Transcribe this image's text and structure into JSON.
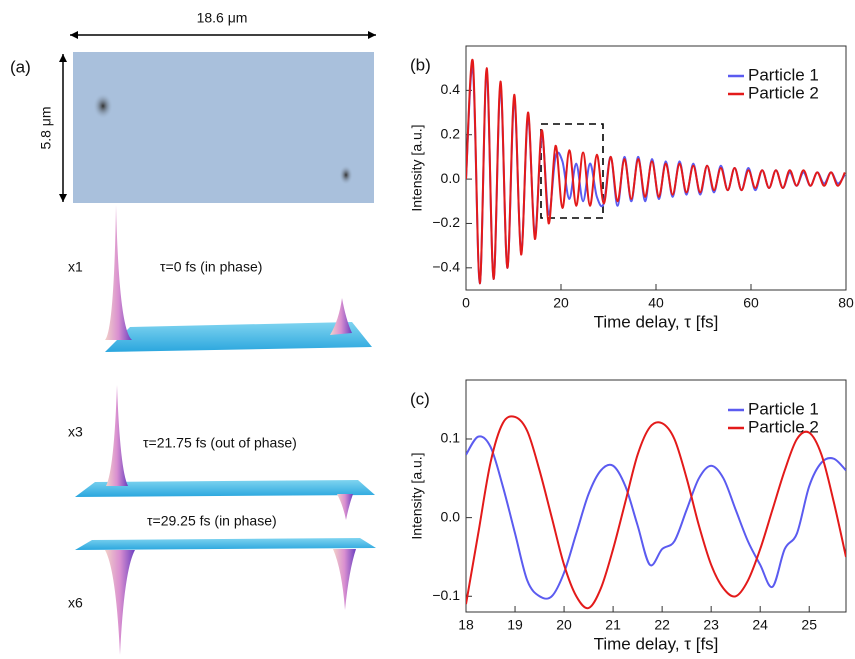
{
  "panel_a": {
    "label": "(a)",
    "width_label": "18.6 μm",
    "height_label": "5.8 μm",
    "frames": [
      {
        "scale": "x1",
        "caption": "τ=0 fs (in phase)"
      },
      {
        "scale": "x3",
        "caption": "τ=21.75 fs (out of phase)"
      },
      {
        "scale": "x6",
        "caption": "τ=29.25 fs (in phase)"
      }
    ]
  },
  "chart_data": [
    {
      "type": "line",
      "panel_label": "(b)",
      "x_label": "Time delay, τ [fs]",
      "y_label": "Intensity [a.u.]",
      "xlim": [
        0,
        80
      ],
      "xticks": [
        0,
        20,
        40,
        60,
        80
      ],
      "ylim": [
        -0.5,
        0.6
      ],
      "yticks": [
        {
          "value": -0.4,
          "label": "−0.4"
        },
        {
          "value": -0.2,
          "label": "−0.2"
        },
        {
          "value": 0,
          "label": "0.0"
        },
        0.2,
        0.4
      ],
      "legend": "top-right",
      "x": [
        0,
        1.45,
        2.9,
        4.35,
        5.8,
        7.25,
        8.7,
        10.15,
        11.6,
        13.05,
        14.5,
        15.95,
        17.4,
        18.85,
        20.3,
        21.75,
        23.2,
        24.65,
        26.1,
        27.55,
        29,
        30.45,
        31.9,
        33.35,
        34.8,
        36.25,
        37.7,
        39.15,
        40.6,
        42.05,
        43.5,
        44.95,
        46.4,
        47.85,
        49.3,
        50.75,
        52.2,
        53.65,
        55.1,
        56.55,
        58,
        59.45,
        60.9,
        62.35,
        63.8,
        65.25,
        66.7,
        68.15,
        69.6,
        71.05,
        72.5,
        73.95,
        75.4,
        76.85,
        78.3,
        79.75
      ],
      "series": [
        {
          "name": "Particle 1",
          "color": "#5b5bf0",
          "values": [
            0,
            0.5,
            -0.47,
            0.48,
            -0.45,
            0.42,
            -0.4,
            0.36,
            -0.33,
            0.28,
            -0.25,
            0.2,
            -0.16,
            0.1,
            0.08,
            -0.09,
            0.07,
            -0.1,
            0.07,
            -0.08,
            -0.11,
            0.1,
            -0.12,
            0.1,
            -0.1,
            0.1,
            -0.1,
            0.09,
            -0.09,
            0.08,
            -0.08,
            0.08,
            -0.07,
            0.07,
            -0.07,
            0.06,
            -0.06,
            0.06,
            -0.05,
            0.05,
            -0.05,
            0.05,
            -0.05,
            0.04,
            -0.04,
            0.04,
            -0.04,
            0.03,
            -0.03,
            0.03,
            -0.03,
            0.03,
            -0.02,
            0.03,
            -0.02,
            0.02
          ]
        },
        {
          "name": "Particle 2",
          "color": "#e31a1a",
          "values": [
            0,
            0.53,
            -0.47,
            0.5,
            -0.45,
            0.44,
            -0.4,
            0.38,
            -0.34,
            0.3,
            -0.27,
            0.22,
            -0.2,
            0.15,
            -0.13,
            0.13,
            -0.12,
            0.12,
            -0.12,
            0.11,
            -0.11,
            0.1,
            -0.1,
            0.09,
            -0.09,
            0.09,
            -0.08,
            0.08,
            -0.08,
            0.07,
            -0.07,
            0.07,
            -0.06,
            0.06,
            -0.06,
            0.06,
            -0.05,
            0.05,
            -0.05,
            0.05,
            -0.05,
            0.04,
            -0.04,
            0.04,
            -0.04,
            0.04,
            -0.04,
            0.04,
            -0.03,
            0.04,
            -0.03,
            0.03,
            -0.03,
            0.03,
            -0.03,
            0.03
          ]
        }
      ]
    },
    {
      "type": "line",
      "panel_label": "(c)",
      "x_label": "Time delay, τ [fs]",
      "y_label": "Intensity [a.u.]",
      "xlim": [
        18,
        25.75
      ],
      "xticks": [
        18,
        19,
        20,
        21,
        22,
        23,
        24,
        25
      ],
      "ylim": [
        -0.12,
        0.175
      ],
      "yticks": [
        {
          "value": -0.1,
          "label": "−0.1"
        },
        {
          "value": 0,
          "label": "0.0"
        },
        0.1
      ],
      "legend": "top-right",
      "x": [
        18,
        18.25,
        18.5,
        18.75,
        19,
        19.25,
        19.5,
        19.75,
        20,
        20.25,
        20.5,
        20.75,
        21,
        21.25,
        21.5,
        21.75,
        22,
        22.25,
        22.5,
        22.75,
        23,
        23.25,
        23.5,
        23.75,
        24,
        24.25,
        24.5,
        24.75,
        25,
        25.25,
        25.5,
        25.75
      ],
      "series": [
        {
          "name": "Particle 1",
          "color": "#5b5bf0",
          "values": [
            0.08,
            0.103,
            0.09,
            0.04,
            -0.02,
            -0.08,
            -0.1,
            -0.1,
            -0.07,
            -0.02,
            0.03,
            0.06,
            0.066,
            0.04,
            -0.01,
            -0.06,
            -0.04,
            -0.03,
            0.01,
            0.05,
            0.066,
            0.05,
            0.01,
            -0.03,
            -0.06,
            -0.088,
            -0.04,
            -0.02,
            0.04,
            0.07,
            0.075,
            0.06
          ]
        },
        {
          "name": "Particle 2",
          "color": "#e31a1a",
          "values": [
            -0.11,
            -0.02,
            0.07,
            0.12,
            0.128,
            0.11,
            0.06,
            0,
            -0.06,
            -0.1,
            -0.115,
            -0.09,
            -0.04,
            0.02,
            0.08,
            0.115,
            0.12,
            0.1,
            0.05,
            -0.01,
            -0.06,
            -0.09,
            -0.1,
            -0.08,
            -0.04,
            0.01,
            0.06,
            0.1,
            0.108,
            0.08,
            0.02,
            -0.05
          ]
        }
      ]
    }
  ]
}
